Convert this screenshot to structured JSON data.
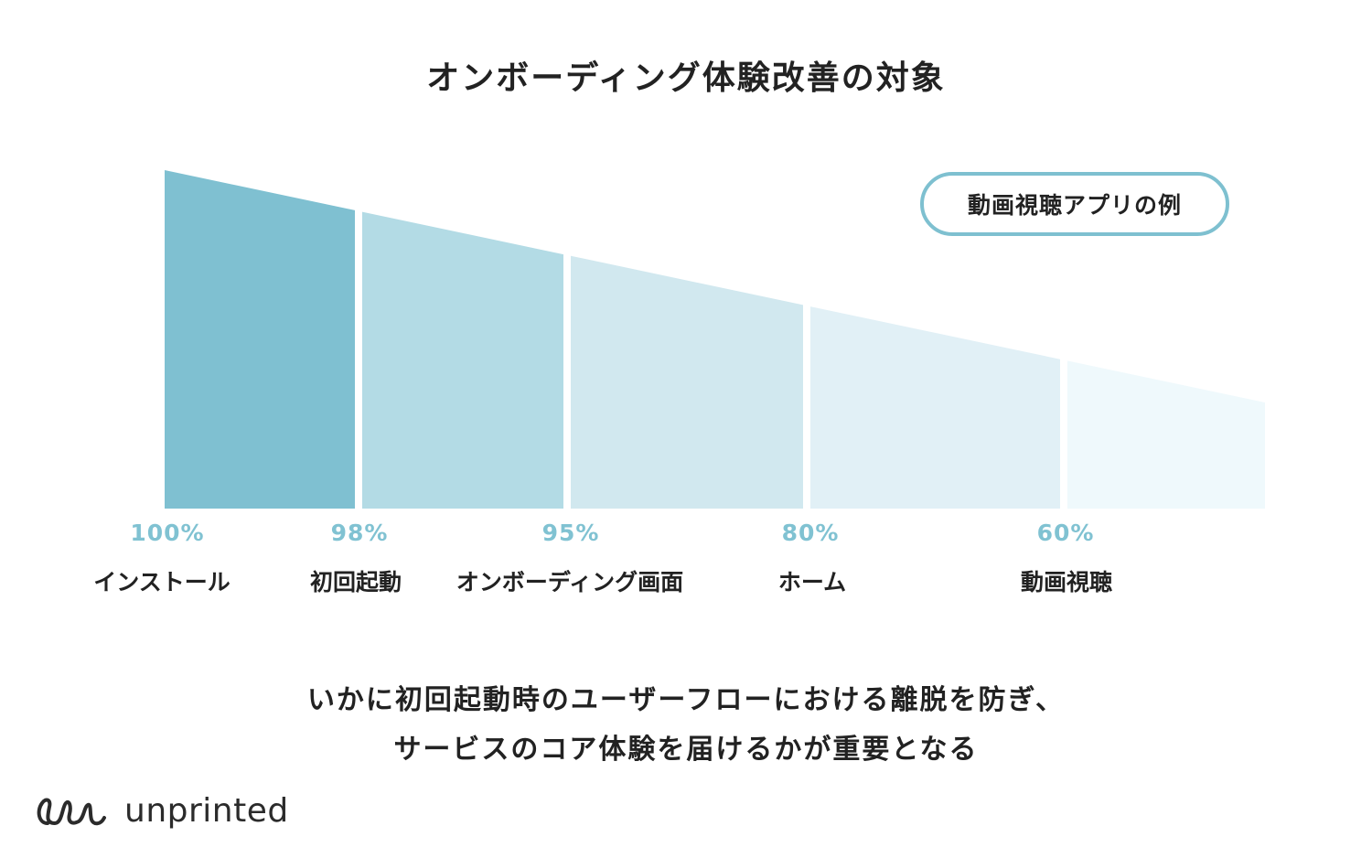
{
  "title": "オンボーディング体験改善の対象",
  "badge": "動画視聴アプリの例",
  "caption": {
    "line1": "いかに初回起動時のユーザーフローにおける離脱を防ぎ、",
    "line2": "サービスのコア体験を届けるかが重要となる"
  },
  "logo": {
    "text": "unprinted"
  },
  "colors": {
    "segments": [
      "#7fc0d1",
      "#b3dbe5",
      "#d1e8ef",
      "#e1f0f6",
      "#eff9fc"
    ],
    "percent_label": "#80c2d2",
    "text": "#222222"
  },
  "chart_data": {
    "type": "area",
    "title": "オンボーディング体験改善の対象",
    "stages": [
      "インストール",
      "初回起動",
      "オンボーディング画面",
      "ホーム",
      "動画視聴"
    ],
    "values": [
      100,
      98,
      95,
      80,
      60
    ],
    "value_labels": [
      "100%",
      "98%",
      "95%",
      "80%",
      "60%"
    ],
    "legend": "動画視聴アプリの例"
  }
}
